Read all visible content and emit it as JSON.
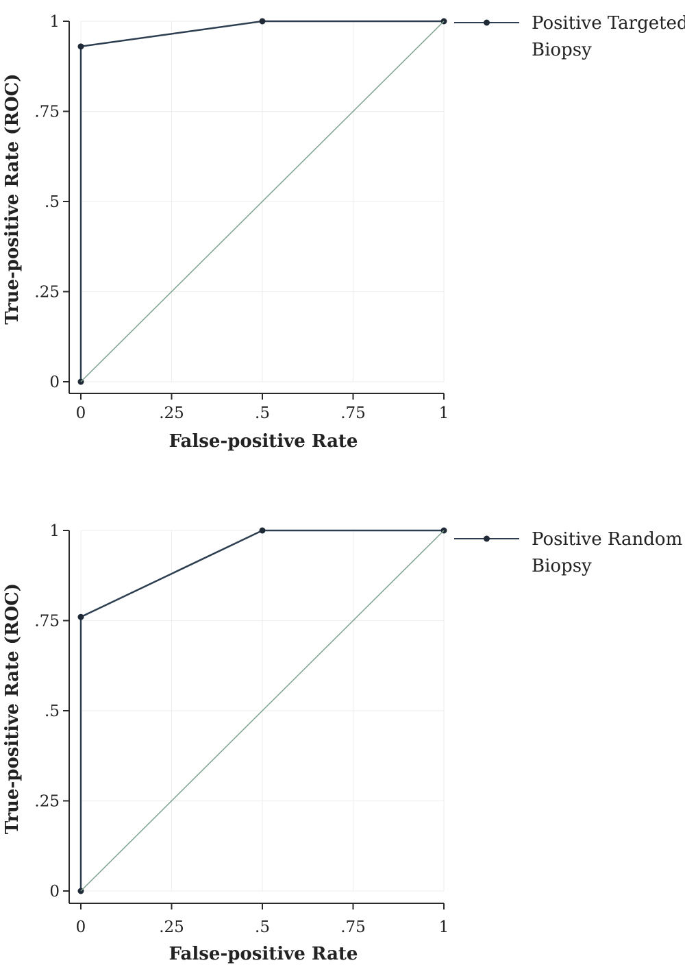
{
  "chart_data": [
    {
      "type": "line",
      "title": "",
      "xlabel": "False-positive Rate",
      "ylabel": "True-positive Rate (ROC)",
      "xlim": [
        0,
        1
      ],
      "ylim": [
        0,
        1
      ],
      "x_ticks": [
        0,
        0.25,
        0.5,
        0.75,
        1
      ],
      "x_tick_labels": [
        "0",
        ".25",
        ".5",
        ".75",
        "1"
      ],
      "y_ticks": [
        0,
        0.25,
        0.5,
        0.75,
        1
      ],
      "y_tick_labels": [
        "0",
        ".25",
        ".5",
        ".75",
        "1"
      ],
      "grid": true,
      "legend_position": "top-right",
      "series": [
        {
          "name": "Positive Targeted Biopsy",
          "color": "#2c3e50",
          "x": [
            0,
            0,
            0.5,
            1
          ],
          "y": [
            0,
            0.93,
            1,
            1
          ],
          "step": true,
          "markers": true
        },
        {
          "color": "#7fa38f",
          "x": [
            0,
            1
          ],
          "y": [
            0,
            1
          ],
          "reference_line": true,
          "markers": false
        }
      ]
    },
    {
      "type": "line",
      "title": "",
      "xlabel": "False-positive Rate",
      "ylabel": "True-positive Rate (ROC)",
      "xlim": [
        0,
        1
      ],
      "ylim": [
        0,
        1
      ],
      "x_ticks": [
        0,
        0.25,
        0.5,
        0.75,
        1
      ],
      "x_tick_labels": [
        "0",
        ".25",
        ".5",
        ".75",
        "1"
      ],
      "y_ticks": [
        0,
        0.25,
        0.5,
        0.75,
        1
      ],
      "y_tick_labels": [
        "0",
        ".25",
        ".5",
        ".75",
        "1"
      ],
      "grid": true,
      "legend_position": "top-right",
      "series": [
        {
          "name": "Positive Random Biopsy",
          "color": "#2c3e50",
          "x": [
            0,
            0,
            0.5,
            1
          ],
          "y": [
            0,
            0.76,
            1,
            1
          ],
          "step": true,
          "markers": true
        },
        {
          "color": "#7fa38f",
          "x": [
            0,
            1
          ],
          "y": [
            0,
            1
          ],
          "reference_line": true,
          "markers": false
        }
      ]
    }
  ]
}
